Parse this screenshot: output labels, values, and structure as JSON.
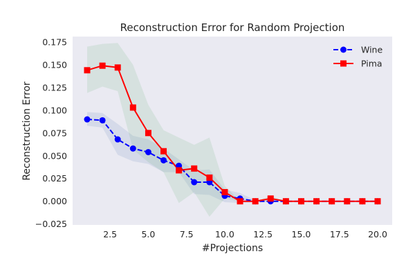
{
  "chart_data": {
    "type": "line",
    "title": "Reconstruction Error for Random Projection",
    "xlabel": "#Projections",
    "ylabel": "Reconstruction Error",
    "xlim": [
      0.05,
      20.95
    ],
    "ylim": [
      -0.026,
      0.181
    ],
    "xticks": [
      2.5,
      5.0,
      7.5,
      10.0,
      12.5,
      15.0,
      17.5,
      20.0
    ],
    "xtick_labels": [
      "2.5",
      "5.0",
      "7.5",
      "10.0",
      "12.5",
      "15.0",
      "17.5",
      "20.0"
    ],
    "yticks": [
      -0.025,
      0.0,
      0.025,
      0.05,
      0.075,
      0.1,
      0.125,
      0.15,
      0.175
    ],
    "ytick_labels": [
      "−0.025",
      "0.000",
      "0.025",
      "0.050",
      "0.075",
      "0.100",
      "0.125",
      "0.150",
      "0.175"
    ],
    "grid": false,
    "legend_position": "top-right",
    "x": [
      1,
      2,
      3,
      4,
      5,
      6,
      7,
      8,
      9,
      10,
      11,
      12,
      13,
      14,
      15,
      16,
      17,
      18,
      19,
      20
    ],
    "series": [
      {
        "name": "Wine",
        "color": "#0000ff",
        "line_style": "dashed",
        "marker": "circle",
        "values": [
          0.09,
          0.089,
          0.068,
          0.058,
          0.054,
          0.045,
          0.039,
          0.021,
          0.021,
          0.006,
          0.003,
          0.0,
          0.0,
          0.0,
          0.0,
          0.0,
          0.0,
          0.0,
          0.0,
          0.0
        ],
        "band_upper": [
          0.098,
          0.097,
          0.085,
          0.072,
          0.068,
          0.058,
          0.046,
          0.034,
          0.035,
          0.013,
          0.009,
          0.001,
          0.001,
          0.0,
          0.0,
          0.0,
          0.0,
          0.0,
          0.0,
          0.0
        ],
        "band_lower": [
          0.083,
          0.081,
          0.051,
          0.044,
          0.041,
          0.032,
          0.032,
          0.008,
          0.007,
          -0.001,
          -0.002,
          -0.001,
          -0.001,
          0.0,
          0.0,
          0.0,
          0.0,
          0.0,
          0.0,
          0.0
        ],
        "band_color": "#4c72b0"
      },
      {
        "name": "Pima",
        "color": "#ff0000",
        "line_style": "solid",
        "marker": "square",
        "values": [
          0.144,
          0.149,
          0.147,
          0.103,
          0.075,
          0.055,
          0.034,
          0.036,
          0.026,
          0.01,
          0.0,
          0.0,
          0.003,
          0.0,
          0.0,
          0.0,
          0.0,
          0.0,
          0.0,
          0.0
        ],
        "band_upper": [
          0.17,
          0.173,
          0.174,
          0.15,
          0.106,
          0.078,
          0.07,
          0.062,
          0.07,
          0.017,
          0.0,
          0.0,
          0.006,
          0.0,
          0.0,
          0.0,
          0.0,
          0.0,
          0.0,
          0.0
        ],
        "band_lower": [
          0.119,
          0.126,
          0.121,
          0.057,
          0.043,
          0.032,
          -0.002,
          0.01,
          -0.017,
          0.003,
          0.0,
          0.0,
          0.0,
          0.0,
          0.0,
          0.0,
          0.0,
          0.0,
          0.0,
          0.0
        ],
        "band_color": "#55a868"
      }
    ],
    "colors": {
      "plot_background": "#eaeaf2",
      "text": "#262626"
    }
  }
}
